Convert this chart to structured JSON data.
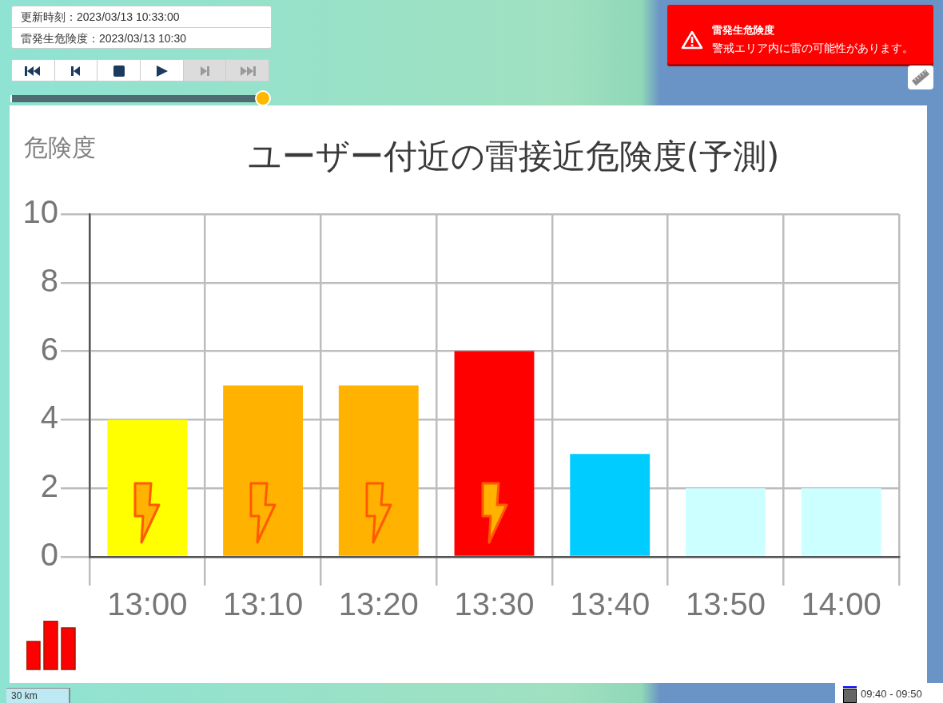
{
  "chart_data": {
    "type": "bar",
    "title": "ユーザー付近の雷接近危険度(予測)",
    "ylabel": "危険度",
    "categories": [
      "13:00",
      "13:10",
      "13:20",
      "13:30",
      "13:40",
      "13:50",
      "14:00"
    ],
    "values": [
      4,
      5,
      5,
      6,
      3,
      2,
      2
    ],
    "colors": [
      "#ffff00",
      "#ffb300",
      "#ffb300",
      "#ff0000",
      "#00ccff",
      "#ccffff",
      "#ccffff"
    ],
    "ylim": [
      0,
      10
    ],
    "yticks": [
      0,
      2,
      4,
      6,
      8,
      10
    ],
    "grid": true,
    "annotations": [
      "更新時刻：2023/03/13 10:33:00",
      "雷発生危険度：2023/03/13 10:30",
      "雷発生危険度",
      "警戒エリア内に雷の可能性があります。",
      "30 km",
      "09:40 - 09:50"
    ]
  }
}
